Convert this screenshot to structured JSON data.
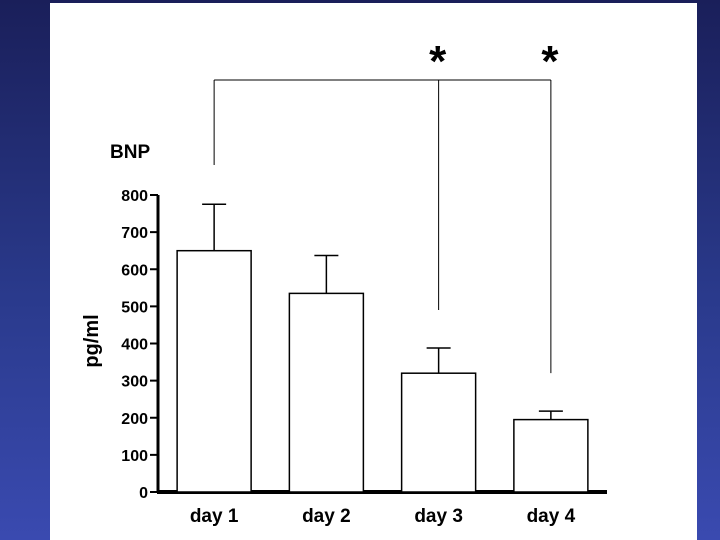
{
  "chart_data": {
    "type": "bar",
    "title": "BNP",
    "ylabel": "pg/ml",
    "xlabel": "",
    "categories": [
      "day 1",
      "day 2",
      "day 3",
      "day 4"
    ],
    "values": [
      650,
      535,
      320,
      195
    ],
    "errors": [
      125,
      102,
      68,
      23
    ],
    "ylim": [
      0,
      800
    ],
    "yticks": [
      "0",
      "100",
      "200",
      "300",
      "400",
      "500",
      "600",
      "700",
      "800"
    ],
    "significance": {
      "reference_category": "day 1",
      "marked_categories": [
        "day 3",
        "day 4"
      ],
      "marker": "*"
    },
    "grid": false,
    "colors": {
      "bar_fill": "#ffffff",
      "bar_stroke": "#000000"
    }
  }
}
